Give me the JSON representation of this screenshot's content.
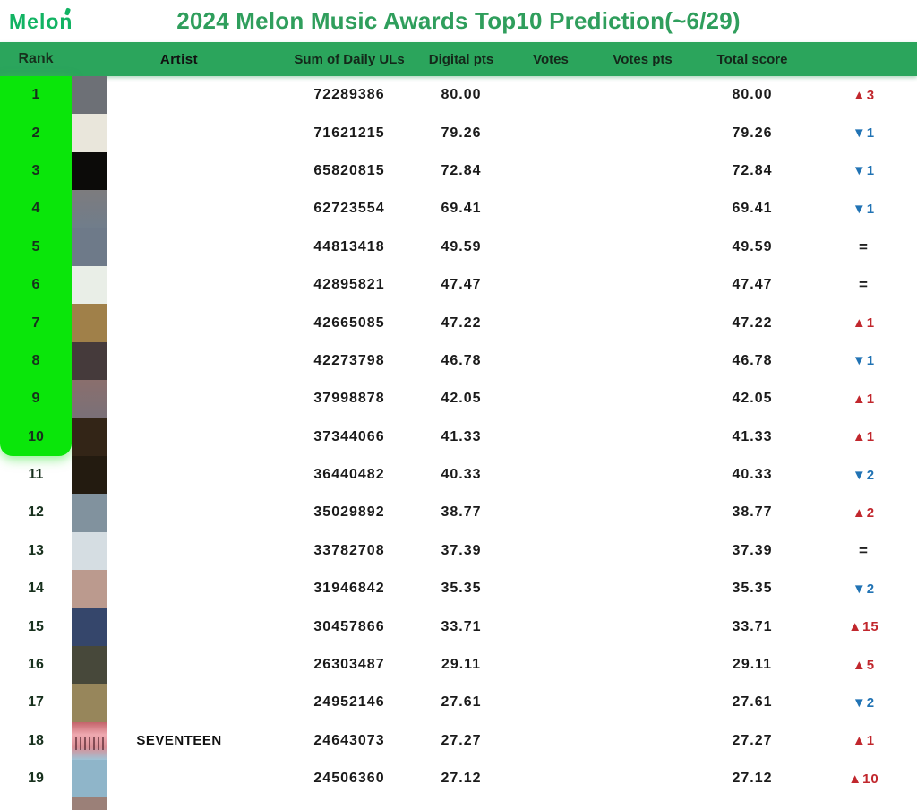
{
  "page": {
    "logo": "Melon",
    "title": "2024 Melon Music Awards Top10 Prediction(~6/29)"
  },
  "colors": {
    "header_bar": "#2BA55C",
    "rank_highlight": "#0AE60A",
    "title_green": "#2F9E5C",
    "logo_green": "#12B363",
    "up": "#C1272D",
    "down": "#2173B4",
    "same": "#222222"
  },
  "table": {
    "headers": [
      "Rank",
      "Artist",
      "Sum of Daily ULs",
      "Digital pts",
      "Votes",
      "Votes pts",
      "Total score"
    ],
    "change_symbols": {
      "up": "▲",
      "down": "▼",
      "same": "="
    },
    "rows": [
      {
        "rank": "1",
        "artist": "",
        "sum_uls": "72289386",
        "digital_pts": "80.00",
        "votes": "",
        "votes_pts": "",
        "total": "80.00",
        "change_dir": "up",
        "change_value": "3",
        "thumb_colors": [
          "#6d7076"
        ]
      },
      {
        "rank": "2",
        "artist": "",
        "sum_uls": "71621215",
        "digital_pts": "79.26",
        "votes": "",
        "votes_pts": "",
        "total": "79.26",
        "change_dir": "down",
        "change_value": "1",
        "thumb_colors": [
          "#e9e6db"
        ]
      },
      {
        "rank": "3",
        "artist": "",
        "sum_uls": "65820815",
        "digital_pts": "72.84",
        "votes": "",
        "votes_pts": "",
        "total": "72.84",
        "change_dir": "down",
        "change_value": "1",
        "thumb_colors": [
          "#0c0b09"
        ]
      },
      {
        "rank": "4",
        "artist": "",
        "sum_uls": "62723554",
        "digital_pts": "69.41",
        "votes": "",
        "votes_pts": "",
        "total": "69.41",
        "change_dir": "down",
        "change_value": "1",
        "thumb_colors": [
          "#7d7c7e",
          "#707d8b"
        ]
      },
      {
        "rank": "5",
        "artist": "",
        "sum_uls": "44813418",
        "digital_pts": "49.59",
        "votes": "",
        "votes_pts": "",
        "total": "49.59",
        "change_dir": "same",
        "change_value": "",
        "thumb_colors": [
          "#6e7a89"
        ]
      },
      {
        "rank": "6",
        "artist": "",
        "sum_uls": "42895821",
        "digital_pts": "47.47",
        "votes": "",
        "votes_pts": "",
        "total": "47.47",
        "change_dir": "same",
        "change_value": "",
        "thumb_colors": [
          "#e9eee7"
        ]
      },
      {
        "rank": "7",
        "artist": "",
        "sum_uls": "42665085",
        "digital_pts": "47.22",
        "votes": "",
        "votes_pts": "",
        "total": "47.22",
        "change_dir": "up",
        "change_value": "1",
        "thumb_colors": [
          "#a08049"
        ]
      },
      {
        "rank": "8",
        "artist": "",
        "sum_uls": "42273798",
        "digital_pts": "46.78",
        "votes": "",
        "votes_pts": "",
        "total": "46.78",
        "change_dir": "down",
        "change_value": "1",
        "thumb_colors": [
          "#453a3b"
        ]
      },
      {
        "rank": "9",
        "artist": "",
        "sum_uls": "37998878",
        "digital_pts": "42.05",
        "votes": "",
        "votes_pts": "",
        "total": "42.05",
        "change_dir": "up",
        "change_value": "1",
        "thumb_colors": [
          "#8a6f6d",
          "#7a7078"
        ]
      },
      {
        "rank": "10",
        "artist": "",
        "sum_uls": "37344066",
        "digital_pts": "41.33",
        "votes": "",
        "votes_pts": "",
        "total": "41.33",
        "change_dir": "up",
        "change_value": "1",
        "thumb_colors": [
          "#332517"
        ]
      },
      {
        "rank": "11",
        "artist": "",
        "sum_uls": "36440482",
        "digital_pts": "40.33",
        "votes": "",
        "votes_pts": "",
        "total": "40.33",
        "change_dir": "down",
        "change_value": "2",
        "thumb_colors": [
          "#231b10"
        ]
      },
      {
        "rank": "12",
        "artist": "",
        "sum_uls": "35029892",
        "digital_pts": "38.77",
        "votes": "",
        "votes_pts": "",
        "total": "38.77",
        "change_dir": "up",
        "change_value": "2",
        "thumb_colors": [
          "#81929e"
        ]
      },
      {
        "rank": "13",
        "artist": "",
        "sum_uls": "33782708",
        "digital_pts": "37.39",
        "votes": "",
        "votes_pts": "",
        "total": "37.39",
        "change_dir": "same",
        "change_value": "",
        "thumb_colors": [
          "#d5dde2"
        ]
      },
      {
        "rank": "14",
        "artist": "",
        "sum_uls": "31946842",
        "digital_pts": "35.35",
        "votes": "",
        "votes_pts": "",
        "total": "35.35",
        "change_dir": "down",
        "change_value": "2",
        "thumb_colors": [
          "#bb9a8e"
        ]
      },
      {
        "rank": "15",
        "artist": "",
        "sum_uls": "30457866",
        "digital_pts": "33.71",
        "votes": "",
        "votes_pts": "",
        "total": "33.71",
        "change_dir": "up",
        "change_value": "15",
        "thumb_colors": [
          "#35466b"
        ]
      },
      {
        "rank": "16",
        "artist": "",
        "sum_uls": "26303487",
        "digital_pts": "29.11",
        "votes": "",
        "votes_pts": "",
        "total": "29.11",
        "change_dir": "up",
        "change_value": "5",
        "thumb_colors": [
          "#47483a"
        ]
      },
      {
        "rank": "17",
        "artist": "",
        "sum_uls": "24952146",
        "digital_pts": "27.61",
        "votes": "",
        "votes_pts": "",
        "total": "27.61",
        "change_dir": "down",
        "change_value": "2",
        "thumb_colors": [
          "#97865b"
        ]
      },
      {
        "rank": "18",
        "artist": "SEVENTEEN",
        "sum_uls": "24643073",
        "digital_pts": "27.27",
        "votes": "",
        "votes_pts": "",
        "total": "27.27",
        "change_dir": "up",
        "change_value": "1",
        "thumb_colors": [
          "#c4646a",
          "#efa9b0",
          "#d98f96",
          "#9ec3d6"
        ],
        "thumb_figures": true
      },
      {
        "rank": "19",
        "artist": "",
        "sum_uls": "24506360",
        "digital_pts": "27.12",
        "votes": "",
        "votes_pts": "",
        "total": "27.12",
        "change_dir": "up",
        "change_value": "10",
        "thumb_colors": [
          "#8fb5c9"
        ]
      },
      {
        "rank": "",
        "artist": "",
        "sum_uls": "",
        "digital_pts": "",
        "votes": "",
        "votes_pts": "",
        "total": "",
        "change_dir": "",
        "change_value": "",
        "thumb_colors": [
          "#9b8078"
        ]
      }
    ]
  }
}
